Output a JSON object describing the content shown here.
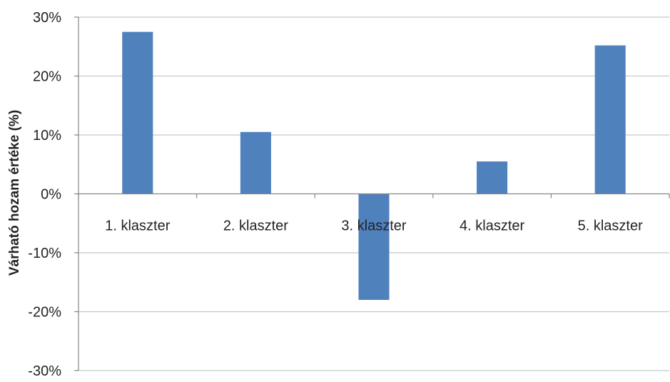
{
  "chart_data": {
    "type": "bar",
    "title": "",
    "xlabel": "",
    "ylabel": "Várható hozam értéke (%)",
    "categories": [
      "1. klaszter",
      "2. klaszter",
      "3. klaszter",
      "4. klaszter",
      "5. klaszter"
    ],
    "values": [
      27.5,
      10.5,
      -18.0,
      5.5,
      25.2
    ],
    "ylim": [
      -30,
      30
    ],
    "yticks": [
      30,
      20,
      10,
      0,
      -10,
      -20,
      -30
    ],
    "ytick_labels": [
      "30%",
      "20%",
      "10%",
      "0%",
      "-10%",
      "-20%",
      "-30%"
    ],
    "grid": true,
    "legend": "none",
    "colors": {
      "bar": "#4F81BD",
      "grid": "#C8C8C8",
      "axis": "#868686",
      "text": "#222222"
    }
  }
}
